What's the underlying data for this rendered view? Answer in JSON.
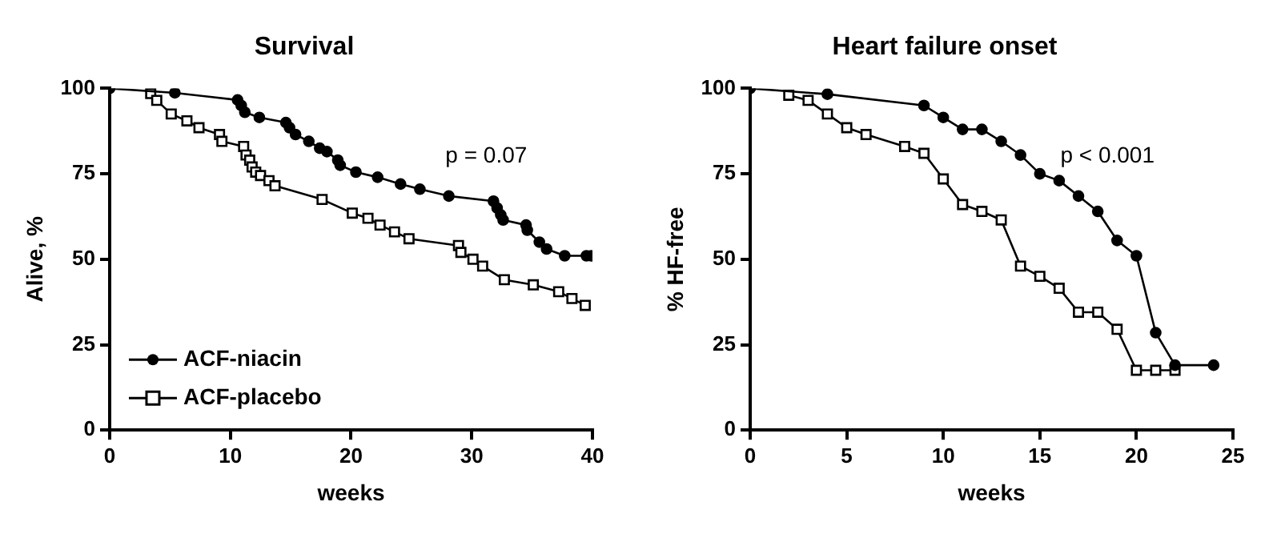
{
  "chart_data": [
    {
      "type": "line",
      "title": "Survival",
      "xlabel": "weeks",
      "ylabel": "Alive, %",
      "xlim": [
        0,
        40
      ],
      "xticks": [
        0,
        10,
        20,
        30,
        40
      ],
      "ylim": [
        0,
        100
      ],
      "yticks": [
        0,
        25,
        50,
        75,
        100
      ],
      "grid": false,
      "legend": "bottom left",
      "annotations": [
        "p = 0.07"
      ],
      "series": [
        {
          "name": "ACF-niacin",
          "color": "#000000",
          "marker": "circle",
          "x": [
            0,
            5.4,
            10.6,
            10.9,
            11.2,
            12.4,
            14.6,
            14.9,
            15.4,
            16.5,
            17.4,
            18,
            18.9,
            19.1,
            20.4,
            22.2,
            24.1,
            25.7,
            28.1,
            31.8,
            32.1,
            32.4,
            32.6,
            34.5,
            34.6,
            35.6,
            36.2,
            37.7,
            39.5,
            39.9
          ],
          "values": [
            100,
            98.7,
            96.6,
            95,
            93,
            91.5,
            90,
            88.5,
            86.5,
            84.5,
            82.5,
            81.5,
            79,
            77.5,
            75.5,
            74,
            72,
            70.5,
            68.5,
            67,
            65,
            63,
            61.5,
            60,
            58.5,
            55,
            53,
            51,
            51,
            51
          ]
        },
        {
          "name": "ACF-placebo",
          "color": "#000000",
          "marker": "square",
          "x": [
            3.4,
            3.9,
            5.1,
            6.4,
            7.4,
            9.1,
            9.3,
            11.1,
            11.3,
            11.6,
            11.8,
            12.1,
            12.5,
            13.2,
            13.7,
            17.6,
            20.1,
            21.4,
            22.4,
            23.6,
            24.8,
            28.9,
            29.1,
            30.1,
            30.9,
            32.7,
            35.1,
            37.2,
            38.3,
            39.4
          ],
          "values": [
            98.5,
            96.5,
            92.5,
            90.5,
            88.5,
            86.5,
            84.5,
            83,
            80.5,
            79,
            77,
            75.5,
            74.5,
            73,
            71.5,
            67.5,
            63.5,
            62,
            60,
            58,
            56,
            54,
            52,
            50,
            48,
            44,
            42.5,
            40.5,
            38.5,
            36.5
          ]
        }
      ]
    },
    {
      "type": "line",
      "title": "Heart failure onset",
      "xlabel": "weeks",
      "ylabel": "% HF-free",
      "xlim": [
        0,
        25
      ],
      "xticks": [
        0,
        5,
        10,
        15,
        20,
        25
      ],
      "ylim": [
        0,
        100
      ],
      "yticks": [
        0,
        25,
        50,
        75,
        100
      ],
      "grid": false,
      "legend": false,
      "annotations": [
        "p < 0.001"
      ],
      "series": [
        {
          "color": "#000000",
          "marker": "circle",
          "x": [
            0,
            4,
            9,
            10,
            11,
            12,
            13,
            14,
            15,
            16,
            17,
            18,
            19,
            20,
            21,
            22,
            24
          ],
          "values": [
            100,
            98.3,
            95,
            91.5,
            88,
            88,
            84.5,
            80.5,
            75,
            73,
            68.5,
            64,
            55.5,
            51,
            28.5,
            19,
            19
          ]
        },
        {
          "color": "#000000",
          "marker": "square",
          "x": [
            2,
            3,
            4,
            5,
            6,
            8,
            9,
            10,
            11,
            12,
            13,
            14,
            15,
            16,
            17,
            18,
            19,
            20,
            21,
            22
          ],
          "values": [
            98,
            96.5,
            92.5,
            88.5,
            86.5,
            83,
            81,
            73.5,
            66,
            64,
            61.5,
            48,
            45,
            41.5,
            34.5,
            34.5,
            29.5,
            17.5,
            17.5,
            17.5
          ]
        }
      ]
    }
  ]
}
